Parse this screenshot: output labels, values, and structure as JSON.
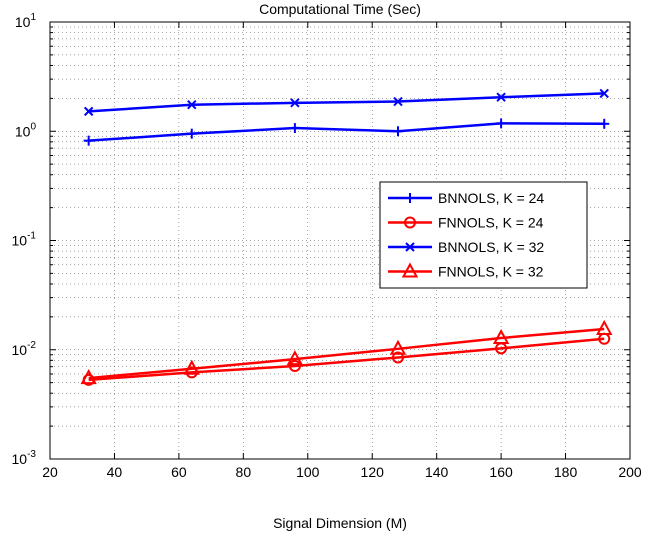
{
  "chart_data": {
    "type": "line",
    "title": "Computational Time (Sec)",
    "xlabel": "Signal Dimension (M)",
    "ylabel": "",
    "xlim": [
      20,
      200
    ],
    "ylim": [
      0.001,
      10
    ],
    "yscale": "log",
    "grid": true,
    "legend_placement": "center-right",
    "x_ticks": [
      20,
      40,
      60,
      80,
      100,
      120,
      140,
      160,
      180,
      200
    ],
    "y_ticks": [
      {
        "value": 0.001,
        "base": "10",
        "exp": "-3"
      },
      {
        "value": 0.01,
        "base": "10",
        "exp": "-2"
      },
      {
        "value": 0.1,
        "base": "10",
        "exp": "-1"
      },
      {
        "value": 1,
        "base": "10",
        "exp": "0"
      },
      {
        "value": 10,
        "base": "10",
        "exp": "1"
      }
    ],
    "x": [
      32,
      64,
      96,
      128,
      160,
      192
    ],
    "series": [
      {
        "name": "BNNOLS, K = 24",
        "color": "#0000ff",
        "marker": "plus",
        "values": [
          0.82,
          0.95,
          1.07,
          1.0,
          1.18,
          1.17
        ]
      },
      {
        "name": "FNNOLS, K = 24",
        "color": "#ff0000",
        "marker": "circle",
        "values": [
          0.0053,
          0.0062,
          0.0071,
          0.0085,
          0.0103,
          0.0126
        ]
      },
      {
        "name": "BNNOLS, K = 32",
        "color": "#0000ff",
        "marker": "x",
        "values": [
          1.52,
          1.75,
          1.82,
          1.87,
          2.05,
          2.22
        ]
      },
      {
        "name": "FNNOLS, K = 32",
        "color": "#ff0000",
        "marker": "triangle",
        "values": [
          0.0055,
          0.0067,
          0.0082,
          0.0102,
          0.0128,
          0.0155
        ]
      }
    ]
  }
}
